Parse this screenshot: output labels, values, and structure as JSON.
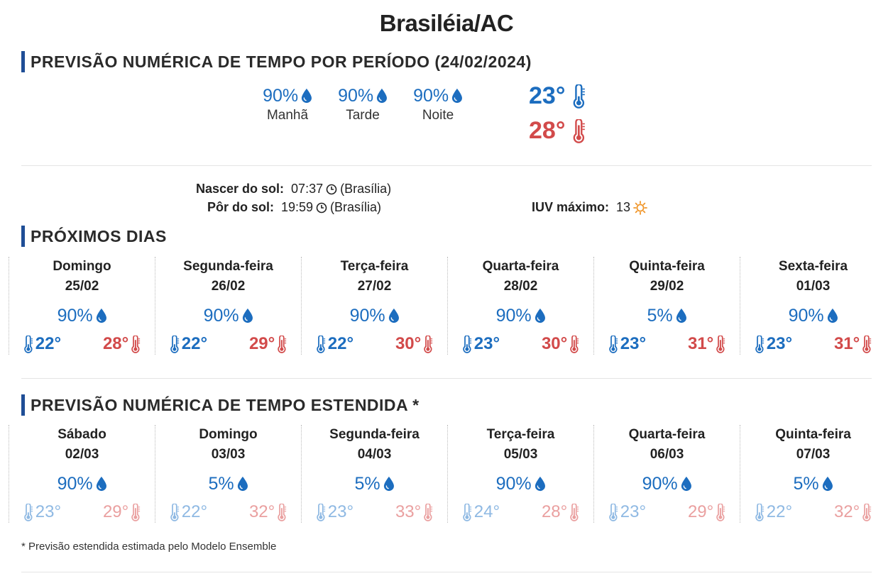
{
  "page": {
    "title": "Brasiléia/AC"
  },
  "period_forecast": {
    "heading": "PREVISÃO NUMÉRICA DE TEMPO POR PERÍODO (24/02/2024)",
    "periods": [
      {
        "pct": "90%",
        "label": "Manhã"
      },
      {
        "pct": "90%",
        "label": "Tarde"
      },
      {
        "pct": "90%",
        "label": "Noite"
      }
    ],
    "temp_min": "23°",
    "temp_max": "28°"
  },
  "sun": {
    "sunrise_label": "Nascer do sol:",
    "sunrise_time": "07:37",
    "sunrise_zone": "(Brasília)",
    "sunset_label": "Pôr do sol:",
    "sunset_time": "19:59",
    "sunset_zone": "(Brasília)",
    "uv_label": "IUV máximo:",
    "uv_value": "13"
  },
  "next_days": {
    "heading": "PRÓXIMOS DIAS",
    "days": [
      {
        "name": "Domingo",
        "date": "25/02",
        "pct": "90%",
        "min": "22°",
        "max": "28°"
      },
      {
        "name": "Segunda-feira",
        "date": "26/02",
        "pct": "90%",
        "min": "22°",
        "max": "29°"
      },
      {
        "name": "Terça-feira",
        "date": "27/02",
        "pct": "90%",
        "min": "22°",
        "max": "30°"
      },
      {
        "name": "Quarta-feira",
        "date": "28/02",
        "pct": "90%",
        "min": "23°",
        "max": "30°"
      },
      {
        "name": "Quinta-feira",
        "date": "29/02",
        "pct": "5%",
        "min": "23°",
        "max": "31°"
      },
      {
        "name": "Sexta-feira",
        "date": "01/03",
        "pct": "90%",
        "min": "23°",
        "max": "31°"
      }
    ]
  },
  "extended": {
    "heading": "PREVISÃO NUMÉRICA DE TEMPO ESTENDIDA *",
    "days": [
      {
        "name": "Sábado",
        "date": "02/03",
        "pct": "90%",
        "min": "23°",
        "max": "29°"
      },
      {
        "name": "Domingo",
        "date": "03/03",
        "pct": "5%",
        "min": "22°",
        "max": "32°"
      },
      {
        "name": "Segunda-feira",
        "date": "04/03",
        "pct": "5%",
        "min": "23°",
        "max": "33°"
      },
      {
        "name": "Terça-feira",
        "date": "05/03",
        "pct": "90%",
        "min": "24°",
        "max": "28°"
      },
      {
        "name": "Quarta-feira",
        "date": "06/03",
        "pct": "90%",
        "min": "23°",
        "max": "29°"
      },
      {
        "name": "Quinta-feira",
        "date": "07/03",
        "pct": "5%",
        "min": "22°",
        "max": "32°"
      }
    ],
    "footnote": "* Previsão estendida estimada pelo Modelo Ensemble"
  },
  "icons": {
    "rain": "raindrop-icon",
    "cold": "thermometer-cold-icon",
    "hot": "thermometer-hot-icon",
    "clock": "clock-icon",
    "sun": "sun-icon"
  },
  "colors": {
    "accent": "#1f4e96",
    "rain_blue": "#1c6dbf",
    "max_red": "#d24a4a",
    "ext_blue": "#8fb9e3",
    "ext_red": "#eaa0a0"
  }
}
